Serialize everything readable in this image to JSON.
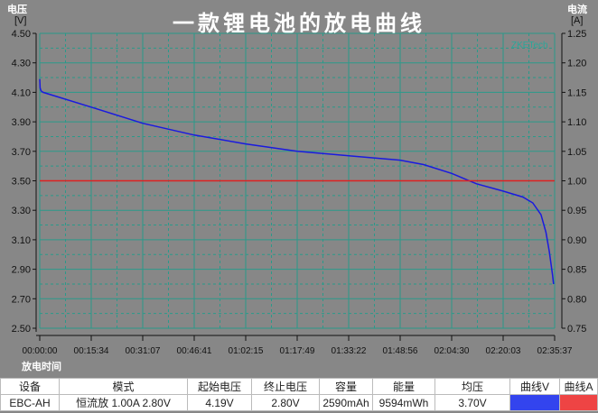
{
  "chart_data": {
    "type": "line",
    "title": "一款锂电池的放电曲线",
    "xlabel": "放电时间",
    "ylabel": "电压",
    "ylabel_unit": "[V]",
    "y2label": "电流",
    "y2label_unit": "[A]",
    "watermark_brand": "ZKETech",
    "xlim_minutes": [
      0,
      155.62
    ],
    "ylim": [
      2.5,
      4.5
    ],
    "y2lim": [
      0.75,
      1.25
    ],
    "grid": true,
    "x_tick_labels": [
      "00:00:00",
      "00:15:34",
      "00:31:07",
      "00:46:41",
      "01:02:15",
      "01:17:49",
      "01:33:22",
      "01:48:56",
      "02:04:30",
      "02:20:03",
      "02:35:37"
    ],
    "y_tick_labels": [
      "4.50",
      "4.30",
      "4.10",
      "3.90",
      "3.70",
      "3.50",
      "3.30",
      "3.10",
      "2.90",
      "2.70",
      "2.50"
    ],
    "y2_tick_labels": [
      "1.25",
      "1.20",
      "1.15",
      "1.10",
      "1.05",
      "1.00",
      "0.95",
      "0.90",
      "0.85",
      "0.80",
      "0.75"
    ],
    "series": [
      {
        "axis": "left",
        "color": "#1a1adf",
        "x": [
          0,
          0.1,
          0.4,
          1,
          15.57,
          31.1,
          46.7,
          62.25,
          77.8,
          93.4,
          108.9,
          116,
          124.5,
          132,
          140,
          146,
          149,
          151.5,
          153,
          154,
          155,
          155.3
        ],
        "y": [
          4.19,
          4.13,
          4.11,
          4.1,
          4.0,
          3.89,
          3.81,
          3.75,
          3.7,
          3.67,
          3.64,
          3.61,
          3.55,
          3.48,
          3.43,
          3.39,
          3.35,
          3.27,
          3.15,
          3.02,
          2.86,
          2.8
        ]
      },
      {
        "axis": "right",
        "color": "#e02020",
        "x": [
          0,
          155.62
        ],
        "y": [
          1.0,
          1.0
        ]
      }
    ]
  },
  "table": {
    "headers": [
      "设备",
      "模式",
      "起始电压",
      "终止电压",
      "容量",
      "能量",
      "均压",
      "曲线V",
      "曲线A"
    ],
    "row": [
      "EBC-AH",
      "恒流放 1.00A 2.80V",
      "4.19V",
      "2.80V",
      "2590mAh",
      "9594mWh",
      "3.70V",
      "",
      ""
    ],
    "curve_v_color": "#3344ee",
    "curve_a_color": "#ee4444"
  }
}
